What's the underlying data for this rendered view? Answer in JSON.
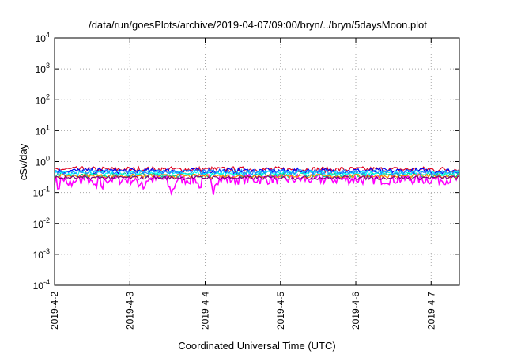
{
  "chart_data": {
    "type": "line",
    "title": "/data/run/goesPlots/archive/2019-04-07/09:00/bryn/../bryn/5daysMoon.plot",
    "xlabel": "Coordinated Universal Time (UTC)",
    "ylabel": "cSv/day",
    "y_scale": "log",
    "ylim": [
      0.0001,
      10000
    ],
    "y_ticks": [
      {
        "value": 0.0001,
        "base": "10",
        "exp": "-4"
      },
      {
        "value": 0.001,
        "base": "10",
        "exp": "-3"
      },
      {
        "value": 0.01,
        "base": "10",
        "exp": "-2"
      },
      {
        "value": 0.1,
        "base": "10",
        "exp": "-1"
      },
      {
        "value": 1,
        "base": "10",
        "exp": "0"
      },
      {
        "value": 10,
        "base": "10",
        "exp": "1"
      },
      {
        "value": 100,
        "base": "10",
        "exp": "2"
      },
      {
        "value": 1000,
        "base": "10",
        "exp": "3"
      },
      {
        "value": 10000,
        "base": "10",
        "exp": "4"
      }
    ],
    "xlim": [
      "2019-04-02T00:00",
      "2019-04-07T09:00"
    ],
    "x_ticks": [
      {
        "value": "2019-04-02T00:00",
        "label": "2019-4-2"
      },
      {
        "value": "2019-04-03T00:00",
        "label": "2019-4-3"
      },
      {
        "value": "2019-04-04T00:00",
        "label": "2019-4-4"
      },
      {
        "value": "2019-04-05T00:00",
        "label": "2019-4-5"
      },
      {
        "value": "2019-04-06T00:00",
        "label": "2019-4-6"
      },
      {
        "value": "2019-04-07T00:00",
        "label": "2019-4-7"
      }
    ],
    "grid": true,
    "series": [
      {
        "color": "#ff00ff",
        "base": 0.27,
        "amp": 0.35,
        "dips": true
      },
      {
        "color": "#e0001c",
        "base": 0.56,
        "amp": 0.18,
        "dips": false
      },
      {
        "color": "#0000ee",
        "base": 0.5,
        "amp": 0.18,
        "dips": false
      },
      {
        "color": "#00cc88",
        "base": 0.37,
        "amp": 0.15,
        "dips": false
      },
      {
        "color": "#00ffff",
        "base": 0.42,
        "amp": 0.15,
        "dips": false
      },
      {
        "color": "#ff8c00",
        "base": 0.34,
        "amp": 0.12,
        "dips": false
      },
      {
        "color": "#1e90ff",
        "base": 0.46,
        "amp": 0.16,
        "dips": false
      },
      {
        "color": "#800080",
        "base": 0.3,
        "amp": 0.12,
        "dips": false
      }
    ]
  }
}
